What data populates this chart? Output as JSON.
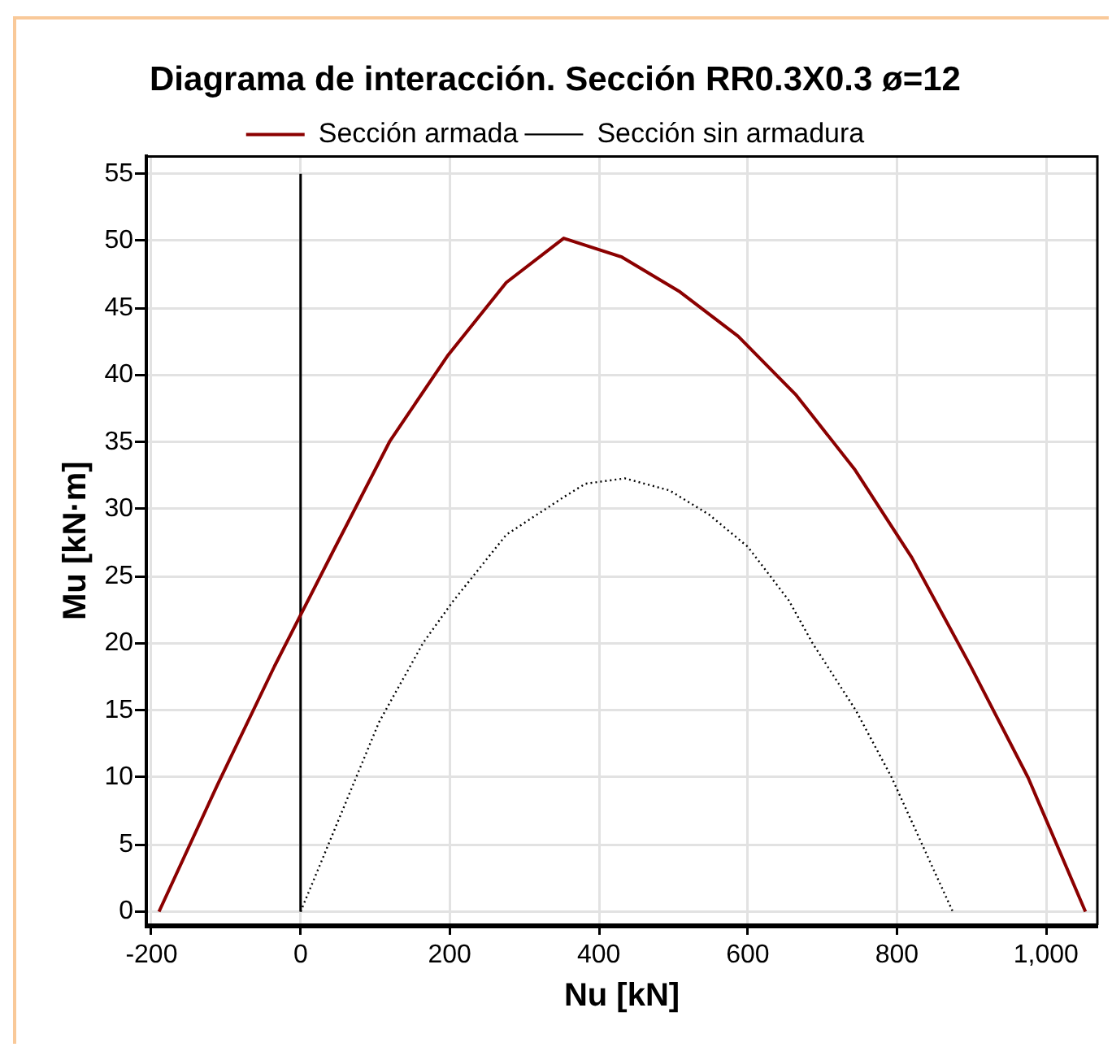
{
  "chart_data": {
    "type": "line",
    "title": "Diagrama de interacción. Sección RR0.3X0.3 ø=12",
    "xlabel": "Nu [kN]",
    "ylabel": "Mu [kN·m]",
    "series": [
      {
        "name": "Sección armada",
        "color": "#8b0000",
        "line_style": "solid",
        "x": [
          -190,
          -112,
          -35,
          43,
          120,
          198,
          276,
          353,
          431,
          509,
          587,
          665,
          743,
          820,
          898,
          976,
          1053
        ],
        "values": [
          0,
          9.4,
          18.3,
          26.8,
          35.1,
          41.5,
          46.9,
          50.2,
          48.8,
          46.2,
          42.9,
          38.5,
          33.0,
          26.4,
          18.4,
          10.0,
          0
        ]
      },
      {
        "name": "Sección sin armadura",
        "color": "#000000",
        "line_style": "dotted",
        "x": [
          0,
          105,
          164,
          204,
          276,
          353,
          382,
          435,
          495,
          548,
          600,
          655,
          687,
          745,
          793,
          834,
          875
        ],
        "values": [
          0,
          14.1,
          20,
          23.1,
          28.1,
          30.9,
          31.9,
          32.3,
          31.4,
          29.6,
          27.2,
          23.2,
          20,
          15,
          10,
          5,
          0
        ]
      }
    ],
    "xlim": [
      -207,
      1069
    ],
    "ylim": [
      -1,
      56.3
    ],
    "xticks": [
      -200,
      0,
      200,
      400,
      600,
      800,
      {
        "value": 1000,
        "label": "1,000"
      }
    ],
    "yticks": [
      0,
      5,
      10,
      15,
      20,
      25,
      30,
      35,
      40,
      45,
      50,
      55
    ],
    "ref_lines": [
      {
        "axis": "x",
        "value": 0,
        "color": "#000000"
      }
    ],
    "grid": true,
    "legend": "top",
    "marker": "none"
  }
}
